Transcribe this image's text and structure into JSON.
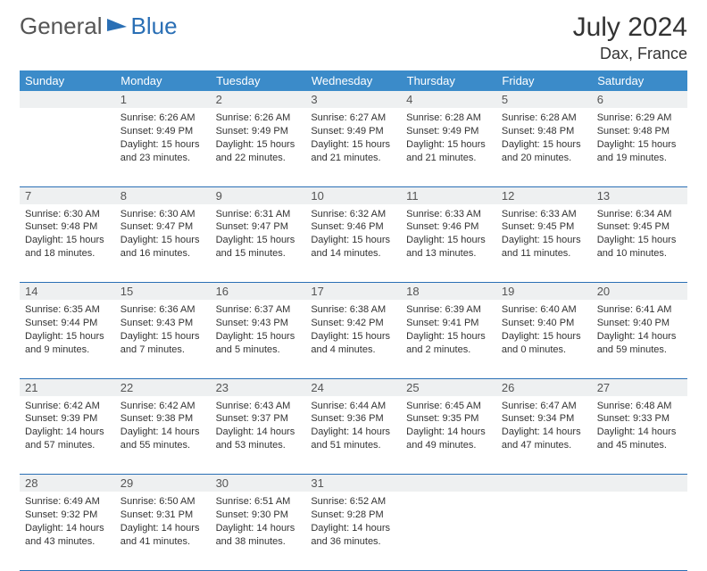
{
  "brand": {
    "part1": "General",
    "part2": "Blue"
  },
  "title": "July 2024",
  "location": "Dax, France",
  "colors": {
    "header_bg": "#3b8bc9",
    "header_text": "#ffffff",
    "daynum_bg": "#eef0f1",
    "border": "#2a6fb5",
    "brand_blue": "#2a6fb5",
    "text": "#333333"
  },
  "day_headers": [
    "Sunday",
    "Monday",
    "Tuesday",
    "Wednesday",
    "Thursday",
    "Friday",
    "Saturday"
  ],
  "weeks": [
    {
      "nums": [
        "",
        "1",
        "2",
        "3",
        "4",
        "5",
        "6"
      ],
      "cells": [
        null,
        {
          "sunrise": "Sunrise: 6:26 AM",
          "sunset": "Sunset: 9:49 PM",
          "day1": "Daylight: 15 hours",
          "day2": "and 23 minutes."
        },
        {
          "sunrise": "Sunrise: 6:26 AM",
          "sunset": "Sunset: 9:49 PM",
          "day1": "Daylight: 15 hours",
          "day2": "and 22 minutes."
        },
        {
          "sunrise": "Sunrise: 6:27 AM",
          "sunset": "Sunset: 9:49 PM",
          "day1": "Daylight: 15 hours",
          "day2": "and 21 minutes."
        },
        {
          "sunrise": "Sunrise: 6:28 AM",
          "sunset": "Sunset: 9:49 PM",
          "day1": "Daylight: 15 hours",
          "day2": "and 21 minutes."
        },
        {
          "sunrise": "Sunrise: 6:28 AM",
          "sunset": "Sunset: 9:48 PM",
          "day1": "Daylight: 15 hours",
          "day2": "and 20 minutes."
        },
        {
          "sunrise": "Sunrise: 6:29 AM",
          "sunset": "Sunset: 9:48 PM",
          "day1": "Daylight: 15 hours",
          "day2": "and 19 minutes."
        }
      ]
    },
    {
      "nums": [
        "7",
        "8",
        "9",
        "10",
        "11",
        "12",
        "13"
      ],
      "cells": [
        {
          "sunrise": "Sunrise: 6:30 AM",
          "sunset": "Sunset: 9:48 PM",
          "day1": "Daylight: 15 hours",
          "day2": "and 18 minutes."
        },
        {
          "sunrise": "Sunrise: 6:30 AM",
          "sunset": "Sunset: 9:47 PM",
          "day1": "Daylight: 15 hours",
          "day2": "and 16 minutes."
        },
        {
          "sunrise": "Sunrise: 6:31 AM",
          "sunset": "Sunset: 9:47 PM",
          "day1": "Daylight: 15 hours",
          "day2": "and 15 minutes."
        },
        {
          "sunrise": "Sunrise: 6:32 AM",
          "sunset": "Sunset: 9:46 PM",
          "day1": "Daylight: 15 hours",
          "day2": "and 14 minutes."
        },
        {
          "sunrise": "Sunrise: 6:33 AM",
          "sunset": "Sunset: 9:46 PM",
          "day1": "Daylight: 15 hours",
          "day2": "and 13 minutes."
        },
        {
          "sunrise": "Sunrise: 6:33 AM",
          "sunset": "Sunset: 9:45 PM",
          "day1": "Daylight: 15 hours",
          "day2": "and 11 minutes."
        },
        {
          "sunrise": "Sunrise: 6:34 AM",
          "sunset": "Sunset: 9:45 PM",
          "day1": "Daylight: 15 hours",
          "day2": "and 10 minutes."
        }
      ]
    },
    {
      "nums": [
        "14",
        "15",
        "16",
        "17",
        "18",
        "19",
        "20"
      ],
      "cells": [
        {
          "sunrise": "Sunrise: 6:35 AM",
          "sunset": "Sunset: 9:44 PM",
          "day1": "Daylight: 15 hours",
          "day2": "and 9 minutes."
        },
        {
          "sunrise": "Sunrise: 6:36 AM",
          "sunset": "Sunset: 9:43 PM",
          "day1": "Daylight: 15 hours",
          "day2": "and 7 minutes."
        },
        {
          "sunrise": "Sunrise: 6:37 AM",
          "sunset": "Sunset: 9:43 PM",
          "day1": "Daylight: 15 hours",
          "day2": "and 5 minutes."
        },
        {
          "sunrise": "Sunrise: 6:38 AM",
          "sunset": "Sunset: 9:42 PM",
          "day1": "Daylight: 15 hours",
          "day2": "and 4 minutes."
        },
        {
          "sunrise": "Sunrise: 6:39 AM",
          "sunset": "Sunset: 9:41 PM",
          "day1": "Daylight: 15 hours",
          "day2": "and 2 minutes."
        },
        {
          "sunrise": "Sunrise: 6:40 AM",
          "sunset": "Sunset: 9:40 PM",
          "day1": "Daylight: 15 hours",
          "day2": "and 0 minutes."
        },
        {
          "sunrise": "Sunrise: 6:41 AM",
          "sunset": "Sunset: 9:40 PM",
          "day1": "Daylight: 14 hours",
          "day2": "and 59 minutes."
        }
      ]
    },
    {
      "nums": [
        "21",
        "22",
        "23",
        "24",
        "25",
        "26",
        "27"
      ],
      "cells": [
        {
          "sunrise": "Sunrise: 6:42 AM",
          "sunset": "Sunset: 9:39 PM",
          "day1": "Daylight: 14 hours",
          "day2": "and 57 minutes."
        },
        {
          "sunrise": "Sunrise: 6:42 AM",
          "sunset": "Sunset: 9:38 PM",
          "day1": "Daylight: 14 hours",
          "day2": "and 55 minutes."
        },
        {
          "sunrise": "Sunrise: 6:43 AM",
          "sunset": "Sunset: 9:37 PM",
          "day1": "Daylight: 14 hours",
          "day2": "and 53 minutes."
        },
        {
          "sunrise": "Sunrise: 6:44 AM",
          "sunset": "Sunset: 9:36 PM",
          "day1": "Daylight: 14 hours",
          "day2": "and 51 minutes."
        },
        {
          "sunrise": "Sunrise: 6:45 AM",
          "sunset": "Sunset: 9:35 PM",
          "day1": "Daylight: 14 hours",
          "day2": "and 49 minutes."
        },
        {
          "sunrise": "Sunrise: 6:47 AM",
          "sunset": "Sunset: 9:34 PM",
          "day1": "Daylight: 14 hours",
          "day2": "and 47 minutes."
        },
        {
          "sunrise": "Sunrise: 6:48 AM",
          "sunset": "Sunset: 9:33 PM",
          "day1": "Daylight: 14 hours",
          "day2": "and 45 minutes."
        }
      ]
    },
    {
      "nums": [
        "28",
        "29",
        "30",
        "31",
        "",
        "",
        ""
      ],
      "cells": [
        {
          "sunrise": "Sunrise: 6:49 AM",
          "sunset": "Sunset: 9:32 PM",
          "day1": "Daylight: 14 hours",
          "day2": "and 43 minutes."
        },
        {
          "sunrise": "Sunrise: 6:50 AM",
          "sunset": "Sunset: 9:31 PM",
          "day1": "Daylight: 14 hours",
          "day2": "and 41 minutes."
        },
        {
          "sunrise": "Sunrise: 6:51 AM",
          "sunset": "Sunset: 9:30 PM",
          "day1": "Daylight: 14 hours",
          "day2": "and 38 minutes."
        },
        {
          "sunrise": "Sunrise: 6:52 AM",
          "sunset": "Sunset: 9:28 PM",
          "day1": "Daylight: 14 hours",
          "day2": "and 36 minutes."
        },
        null,
        null,
        null
      ]
    }
  ]
}
